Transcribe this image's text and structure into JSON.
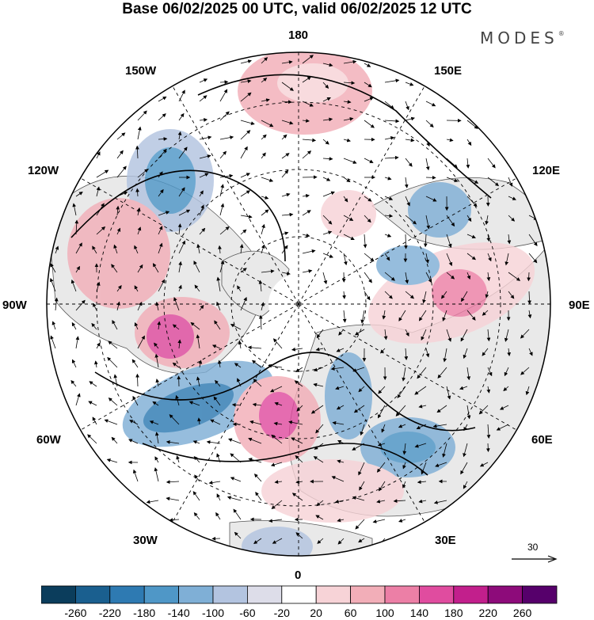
{
  "header": {
    "title": "Base 06/02/2025 00 UTC, valid 06/02/2025 12 UTC",
    "logo_text": "MODES",
    "logo_mark": "®"
  },
  "map": {
    "projection": "north-polar-stereographic",
    "longitude_labels": {
      "top": "180",
      "bottom": "0",
      "left": "90W",
      "right": "90E",
      "upper_left_1": "150W",
      "upper_left_2": "120W",
      "upper_right_1": "150E",
      "upper_right_2": "120E",
      "lower_left_1": "60W",
      "lower_left_2": "30W",
      "lower_right_1": "60E",
      "lower_right_2": "30E"
    },
    "graticule": "dashed",
    "land_color": "#e9e9e9",
    "vectors": "wind-arrows"
  },
  "reference_vector": {
    "label": "30"
  },
  "colorbar": {
    "ticks": [
      "-260",
      "-220",
      "-180",
      "-140",
      "-100",
      "-60",
      "-20",
      "20",
      "60",
      "100",
      "140",
      "180",
      "220",
      "260"
    ],
    "colors": [
      "#0b3d5c",
      "#1a5f8f",
      "#2e7ab2",
      "#4f97c7",
      "#7fafd6",
      "#b3c4e0",
      "#dddde9",
      "#ffffff",
      "#f7d3d7",
      "#f2aeb8",
      "#ec7fa6",
      "#e04c9f",
      "#c21f8c",
      "#8d0b7a",
      "#56006b"
    ]
  }
}
